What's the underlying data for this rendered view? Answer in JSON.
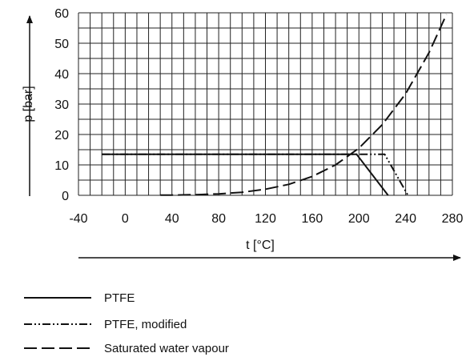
{
  "chart_data": {
    "type": "line",
    "xlabel": "t [°C]",
    "ylabel": "p [bar]",
    "xlim": [
      -40,
      280
    ],
    "ylim": [
      0,
      60
    ],
    "x_ticks": [
      "-40",
      "0",
      "40",
      "80",
      "120",
      "160",
      "200",
      "240",
      "280"
    ],
    "y_ticks": [
      "0",
      "10",
      "20",
      "30",
      "40",
      "50",
      "60"
    ],
    "grid": true,
    "legend_position": "bottom-left",
    "series": [
      {
        "name": "PTFE",
        "style": "solid",
        "x": [
          -20,
          198,
          225
        ],
        "y": [
          13.5,
          13.5,
          0
        ]
      },
      {
        "name": "PTFE, modified",
        "style": "dash-dot-dot",
        "x": [
          -20,
          222,
          242
        ],
        "y": [
          13.5,
          13.5,
          0
        ]
      },
      {
        "name": "Saturated water vapour",
        "style": "long-dash",
        "x": [
          30,
          40,
          60,
          80,
          100,
          120,
          140,
          160,
          180,
          200,
          220,
          240,
          260,
          275
        ],
        "y": [
          0.04,
          0.07,
          0.2,
          0.47,
          1.01,
          1.99,
          3.61,
          6.18,
          10.0,
          15.5,
          23.2,
          33.4,
          46.9,
          59.5
        ]
      }
    ]
  }
}
